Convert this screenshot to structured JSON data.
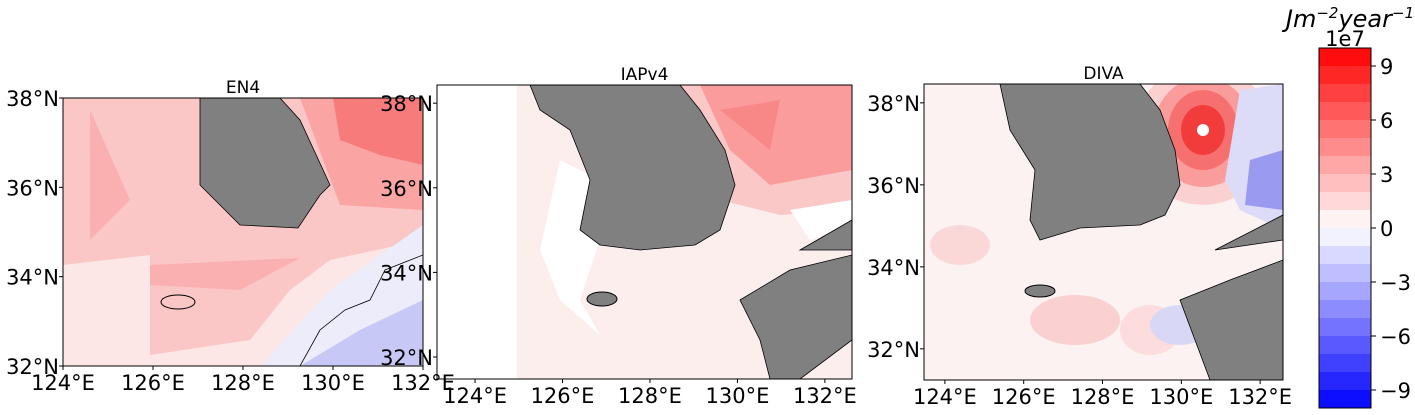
{
  "panels": [
    {
      "title": "EN4",
      "xlim": [
        124,
        132
      ],
      "ylim": [
        32,
        38
      ],
      "xticks": [
        {
          "value": 124,
          "label": "124°E"
        },
        {
          "value": 126,
          "label": "126°E"
        },
        {
          "value": 128,
          "label": "128°E"
        },
        {
          "value": 130,
          "label": "130°E"
        },
        {
          "value": 132,
          "label": "132°E"
        }
      ],
      "yticks": [
        {
          "value": 32,
          "label": "32°N"
        },
        {
          "value": 34,
          "label": "34°N"
        },
        {
          "value": 36,
          "label": "36°N"
        },
        {
          "value": 38,
          "label": "38°N"
        }
      ]
    },
    {
      "title": "IAPv4",
      "xlim": [
        123.13,
        132.62
      ],
      "ylim": [
        31.48,
        38.43
      ],
      "xticks": [
        {
          "value": 124,
          "label": "124°E"
        },
        {
          "value": 126,
          "label": "126°E"
        },
        {
          "value": 128,
          "label": "128°E"
        },
        {
          "value": 130,
          "label": "130°E"
        },
        {
          "value": 132,
          "label": "132°E"
        }
      ],
      "yticks": [
        {
          "value": 32,
          "label": "32°N"
        },
        {
          "value": 34,
          "label": "34°N"
        },
        {
          "value": 36,
          "label": "36°N"
        },
        {
          "value": 38,
          "label": "38°N"
        }
      ]
    },
    {
      "title": "DIVA",
      "xlim": [
        123.47,
        132.58
      ],
      "ylim": [
        31.24,
        38.46
      ],
      "xticks": [
        {
          "value": 124,
          "label": "124°E"
        },
        {
          "value": 126,
          "label": "126°E"
        },
        {
          "value": 128,
          "label": "128°E"
        },
        {
          "value": 130,
          "label": "130°E"
        },
        {
          "value": 132,
          "label": "132°E"
        }
      ],
      "yticks": [
        {
          "value": 32,
          "label": "32°N"
        },
        {
          "value": 34,
          "label": "34°N"
        },
        {
          "value": 36,
          "label": "36°N"
        },
        {
          "value": 38,
          "label": "38°N"
        }
      ]
    }
  ],
  "colorbar": {
    "label": [
      "Jm",
      "−2",
      "year",
      "−1"
    ],
    "scale": "1e7",
    "lim": [
      -10,
      10
    ],
    "ticks": [
      {
        "value": -9,
        "label": "−9"
      },
      {
        "value": -6,
        "label": "−6"
      },
      {
        "value": -3,
        "label": "−3"
      },
      0,
      3,
      6,
      9
    ]
  }
}
